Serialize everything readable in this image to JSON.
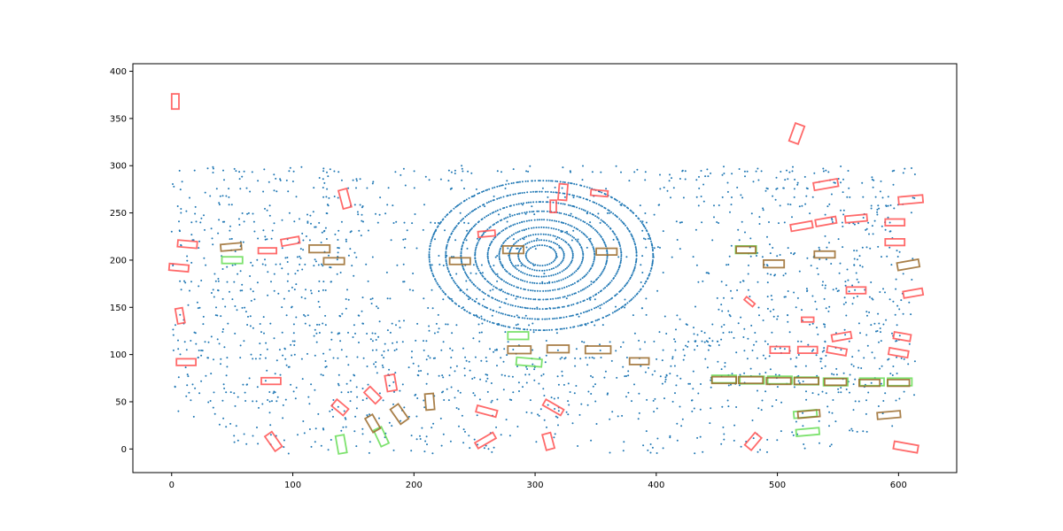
{
  "chart_data": {
    "type": "scatter",
    "title": "",
    "xlabel": "",
    "ylabel": "",
    "xlim": [
      -32,
      648
    ],
    "ylim": [
      -25,
      408
    ],
    "xticks": [
      0,
      100,
      200,
      300,
      400,
      500,
      600
    ],
    "yticks": [
      0,
      50,
      100,
      150,
      200,
      250,
      300,
      350,
      400
    ],
    "colors": {
      "points": "#1f77b4",
      "red_boxes": "#ff5050",
      "green_boxes": "#66dd55",
      "brown_boxes": "#9a6a2a",
      "axes": "#000000"
    },
    "lidar_points": {
      "center": [
        305,
        205
      ],
      "ring_radii": [
        12,
        18,
        25,
        33,
        42,
        52,
        63,
        75,
        88
      ],
      "sampled": true
    },
    "red_boxes": [
      {
        "cx": 3,
        "cy": 368,
        "w": 6,
        "h": 16,
        "angle": 0
      },
      {
        "cx": 516,
        "cy": 334,
        "w": 8,
        "h": 20,
        "angle": -20
      },
      {
        "cx": 143,
        "cy": 265,
        "w": 7,
        "h": 20,
        "angle": 15
      },
      {
        "cx": 323,
        "cy": 272,
        "w": 7,
        "h": 17,
        "angle": -5
      },
      {
        "cx": 353,
        "cy": 271,
        "w": 14,
        "h": 6,
        "angle": -5
      },
      {
        "cx": 315,
        "cy": 257,
        "w": 5,
        "h": 13,
        "angle": 0
      },
      {
        "cx": 540,
        "cy": 280,
        "w": 20,
        "h": 8,
        "angle": 10
      },
      {
        "cx": 610,
        "cy": 264,
        "w": 20,
        "h": 8,
        "angle": 5
      },
      {
        "cx": 520,
        "cy": 236,
        "w": 18,
        "h": 7,
        "angle": 10
      },
      {
        "cx": 540,
        "cy": 241,
        "w": 17,
        "h": 7,
        "angle": 10
      },
      {
        "cx": 565,
        "cy": 244,
        "w": 18,
        "h": 7,
        "angle": 5
      },
      {
        "cx": 597,
        "cy": 240,
        "w": 16,
        "h": 7,
        "angle": 0
      },
      {
        "cx": 597,
        "cy": 219,
        "w": 16,
        "h": 7,
        "angle": 0
      },
      {
        "cx": 260,
        "cy": 228,
        "w": 14,
        "h": 6,
        "angle": 5
      },
      {
        "cx": 13,
        "cy": 217,
        "w": 16,
        "h": 7,
        "angle": -5
      },
      {
        "cx": 79,
        "cy": 210,
        "w": 15,
        "h": 6,
        "angle": 0
      },
      {
        "cx": 98,
        "cy": 220,
        "w": 15,
        "h": 7,
        "angle": 10
      },
      {
        "cx": 6,
        "cy": 192,
        "w": 16,
        "h": 7,
        "angle": -5
      },
      {
        "cx": 565,
        "cy": 168,
        "w": 16,
        "h": 7,
        "angle": 0
      },
      {
        "cx": 612,
        "cy": 165,
        "w": 16,
        "h": 7,
        "angle": 10
      },
      {
        "cx": 477,
        "cy": 156,
        "w": 9,
        "h": 4,
        "angle": -40
      },
      {
        "cx": 7,
        "cy": 141,
        "w": 6,
        "h": 16,
        "angle": 10
      },
      {
        "cx": 525,
        "cy": 137,
        "w": 10,
        "h": 5,
        "angle": 0
      },
      {
        "cx": 553,
        "cy": 119,
        "w": 16,
        "h": 7,
        "angle": 10
      },
      {
        "cx": 603,
        "cy": 119,
        "w": 14,
        "h": 7,
        "angle": -10
      },
      {
        "cx": 502,
        "cy": 105,
        "w": 16,
        "h": 7,
        "angle": 0
      },
      {
        "cx": 525,
        "cy": 105,
        "w": 16,
        "h": 7,
        "angle": 0
      },
      {
        "cx": 549,
        "cy": 104,
        "w": 16,
        "h": 7,
        "angle": -10
      },
      {
        "cx": 600,
        "cy": 102,
        "w": 16,
        "h": 7,
        "angle": -10
      },
      {
        "cx": 12,
        "cy": 92,
        "w": 16,
        "h": 7,
        "angle": 0
      },
      {
        "cx": 82,
        "cy": 72,
        "w": 16,
        "h": 7,
        "angle": 0
      },
      {
        "cx": 181,
        "cy": 70,
        "w": 8,
        "h": 17,
        "angle": 10
      },
      {
        "cx": 166,
        "cy": 57,
        "w": 7,
        "h": 17,
        "angle": 45
      },
      {
        "cx": 139,
        "cy": 44,
        "w": 7,
        "h": 16,
        "angle": 50
      },
      {
        "cx": 260,
        "cy": 40,
        "w": 17,
        "h": 7,
        "angle": -15
      },
      {
        "cx": 315,
        "cy": 44,
        "w": 17,
        "h": 7,
        "angle": -30
      },
      {
        "cx": 84,
        "cy": 8,
        "w": 7,
        "h": 19,
        "angle": 35
      },
      {
        "cx": 259,
        "cy": 9,
        "w": 17,
        "h": 7,
        "angle": 30
      },
      {
        "cx": 311,
        "cy": 8,
        "w": 7,
        "h": 17,
        "angle": 15
      },
      {
        "cx": 480,
        "cy": 8,
        "w": 7,
        "h": 17,
        "angle": -40
      },
      {
        "cx": 606,
        "cy": 2,
        "w": 20,
        "h": 8,
        "angle": -10
      }
    ],
    "green_boxes": [
      {
        "cx": 50,
        "cy": 200,
        "w": 17,
        "h": 7,
        "angle": 0
      },
      {
        "cx": 474,
        "cy": 211,
        "w": 17,
        "h": 8,
        "angle": 0
      },
      {
        "cx": 286,
        "cy": 120,
        "w": 17,
        "h": 8,
        "angle": 0
      },
      {
        "cx": 295,
        "cy": 92,
        "w": 21,
        "h": 8,
        "angle": -5
      },
      {
        "cx": 456,
        "cy": 74,
        "w": 20,
        "h": 8,
        "angle": 0
      },
      {
        "cx": 479,
        "cy": 73,
        "w": 20,
        "h": 8,
        "angle": 0
      },
      {
        "cx": 502,
        "cy": 73,
        "w": 20,
        "h": 8,
        "angle": 0
      },
      {
        "cx": 524,
        "cy": 72,
        "w": 20,
        "h": 8,
        "angle": 0
      },
      {
        "cx": 548,
        "cy": 71,
        "w": 20,
        "h": 8,
        "angle": 0
      },
      {
        "cx": 578,
        "cy": 71,
        "w": 20,
        "h": 8,
        "angle": 0
      },
      {
        "cx": 601,
        "cy": 71,
        "w": 20,
        "h": 8,
        "angle": 0
      },
      {
        "cx": 523,
        "cy": 37,
        "w": 19,
        "h": 7,
        "angle": 5
      },
      {
        "cx": 525,
        "cy": 18,
        "w": 19,
        "h": 7,
        "angle": 5
      },
      {
        "cx": 140,
        "cy": 5,
        "w": 7,
        "h": 19,
        "angle": 10
      },
      {
        "cx": 173,
        "cy": 13,
        "w": 7,
        "h": 19,
        "angle": 25
      }
    ],
    "brown_boxes": [
      {
        "cx": 49,
        "cy": 214,
        "w": 17,
        "h": 7,
        "angle": 5
      },
      {
        "cx": 122,
        "cy": 212,
        "w": 17,
        "h": 8,
        "angle": 0
      },
      {
        "cx": 134,
        "cy": 199,
        "w": 17,
        "h": 7,
        "angle": 0
      },
      {
        "cx": 238,
        "cy": 199,
        "w": 17,
        "h": 7,
        "angle": 0
      },
      {
        "cx": 282,
        "cy": 211,
        "w": 17,
        "h": 8,
        "angle": 0
      },
      {
        "cx": 359,
        "cy": 209,
        "w": 17,
        "h": 7,
        "angle": 0
      },
      {
        "cx": 474,
        "cy": 211,
        "w": 16,
        "h": 7,
        "angle": 0
      },
      {
        "cx": 497,
        "cy": 196,
        "w": 17,
        "h": 8,
        "angle": 0
      },
      {
        "cx": 539,
        "cy": 206,
        "w": 17,
        "h": 7,
        "angle": 0
      },
      {
        "cx": 608,
        "cy": 195,
        "w": 18,
        "h": 8,
        "angle": 10
      },
      {
        "cx": 287,
        "cy": 105,
        "w": 19,
        "h": 8,
        "angle": 0
      },
      {
        "cx": 319,
        "cy": 106,
        "w": 18,
        "h": 8,
        "angle": 0
      },
      {
        "cx": 352,
        "cy": 105,
        "w": 21,
        "h": 8,
        "angle": 0
      },
      {
        "cx": 386,
        "cy": 93,
        "w": 16,
        "h": 7,
        "angle": 0
      },
      {
        "cx": 456,
        "cy": 73,
        "w": 20,
        "h": 7,
        "angle": 0
      },
      {
        "cx": 478,
        "cy": 73,
        "w": 20,
        "h": 7,
        "angle": 0
      },
      {
        "cx": 501,
        "cy": 72,
        "w": 20,
        "h": 7,
        "angle": 0
      },
      {
        "cx": 524,
        "cy": 72,
        "w": 20,
        "h": 7,
        "angle": 0
      },
      {
        "cx": 548,
        "cy": 71,
        "w": 18,
        "h": 7,
        "angle": 0
      },
      {
        "cx": 576,
        "cy": 70,
        "w": 17,
        "h": 7,
        "angle": 0
      },
      {
        "cx": 600,
        "cy": 70,
        "w": 18,
        "h": 7,
        "angle": 0
      },
      {
        "cx": 213,
        "cy": 50,
        "w": 7,
        "h": 17,
        "angle": 5
      },
      {
        "cx": 188,
        "cy": 37,
        "w": 8,
        "h": 19,
        "angle": 35
      },
      {
        "cx": 166,
        "cy": 27,
        "w": 7,
        "h": 17,
        "angle": 30
      },
      {
        "cx": 526,
        "cy": 37,
        "w": 18,
        "h": 7,
        "angle": 5
      },
      {
        "cx": 592,
        "cy": 36,
        "w": 19,
        "h": 7,
        "angle": 5
      }
    ]
  }
}
